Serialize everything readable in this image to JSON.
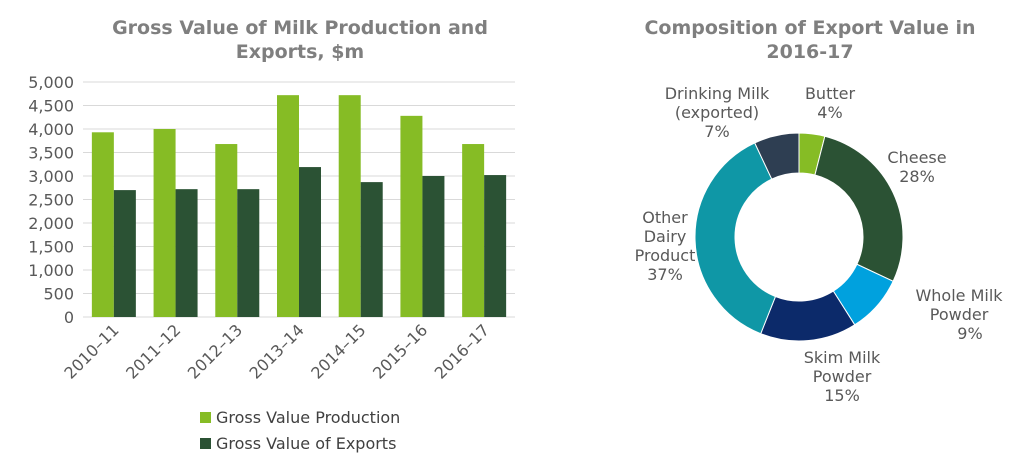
{
  "chart_data": [
    {
      "type": "bar",
      "title": "Gross Value of Milk Production and Exports, $m",
      "categories": [
        "2010–11",
        "2011–12",
        "2012–13",
        "2013–14",
        "2014–15",
        "2015–16",
        "2016–17"
      ],
      "series": [
        {
          "name": "Gross Value Production",
          "color": "#86bc25",
          "values": [
            3930,
            4000,
            3680,
            4720,
            4720,
            4280,
            3680
          ]
        },
        {
          "name": "Gross Value of Exports",
          "color": "#2b5234",
          "values": [
            2700,
            2720,
            2720,
            3190,
            2870,
            3000,
            3020
          ]
        }
      ],
      "ylim": [
        0,
        5000
      ],
      "yticks": [
        "0",
        "500",
        "1,000",
        "1,500",
        "2,000",
        "2,500",
        "3,000",
        "3,500",
        "4,000",
        "4,500",
        "5,000"
      ],
      "grid": true,
      "legend": "bottom"
    },
    {
      "type": "pie",
      "title": "Composition of Export Value in 2016-17",
      "slices": [
        {
          "name": "Butter",
          "value": 4,
          "label": "4%",
          "color": "#86bc25"
        },
        {
          "name": "Cheese",
          "value": 28,
          "label": "28%",
          "color": "#2b5234"
        },
        {
          "name": "Whole Milk Powder",
          "value": 9,
          "label": "9%",
          "color": "#00a1de"
        },
        {
          "name": "Skim Milk Powder",
          "value": 15,
          "label": "15%",
          "color": "#0c2a6a"
        },
        {
          "name": "Other Dairy Product",
          "value": 37,
          "label": "37%",
          "color": "#0f97a6"
        },
        {
          "name": "Drinking Milk (exported)",
          "value": 7,
          "label": "7%",
          "color": "#2e3e52"
        }
      ]
    }
  ]
}
